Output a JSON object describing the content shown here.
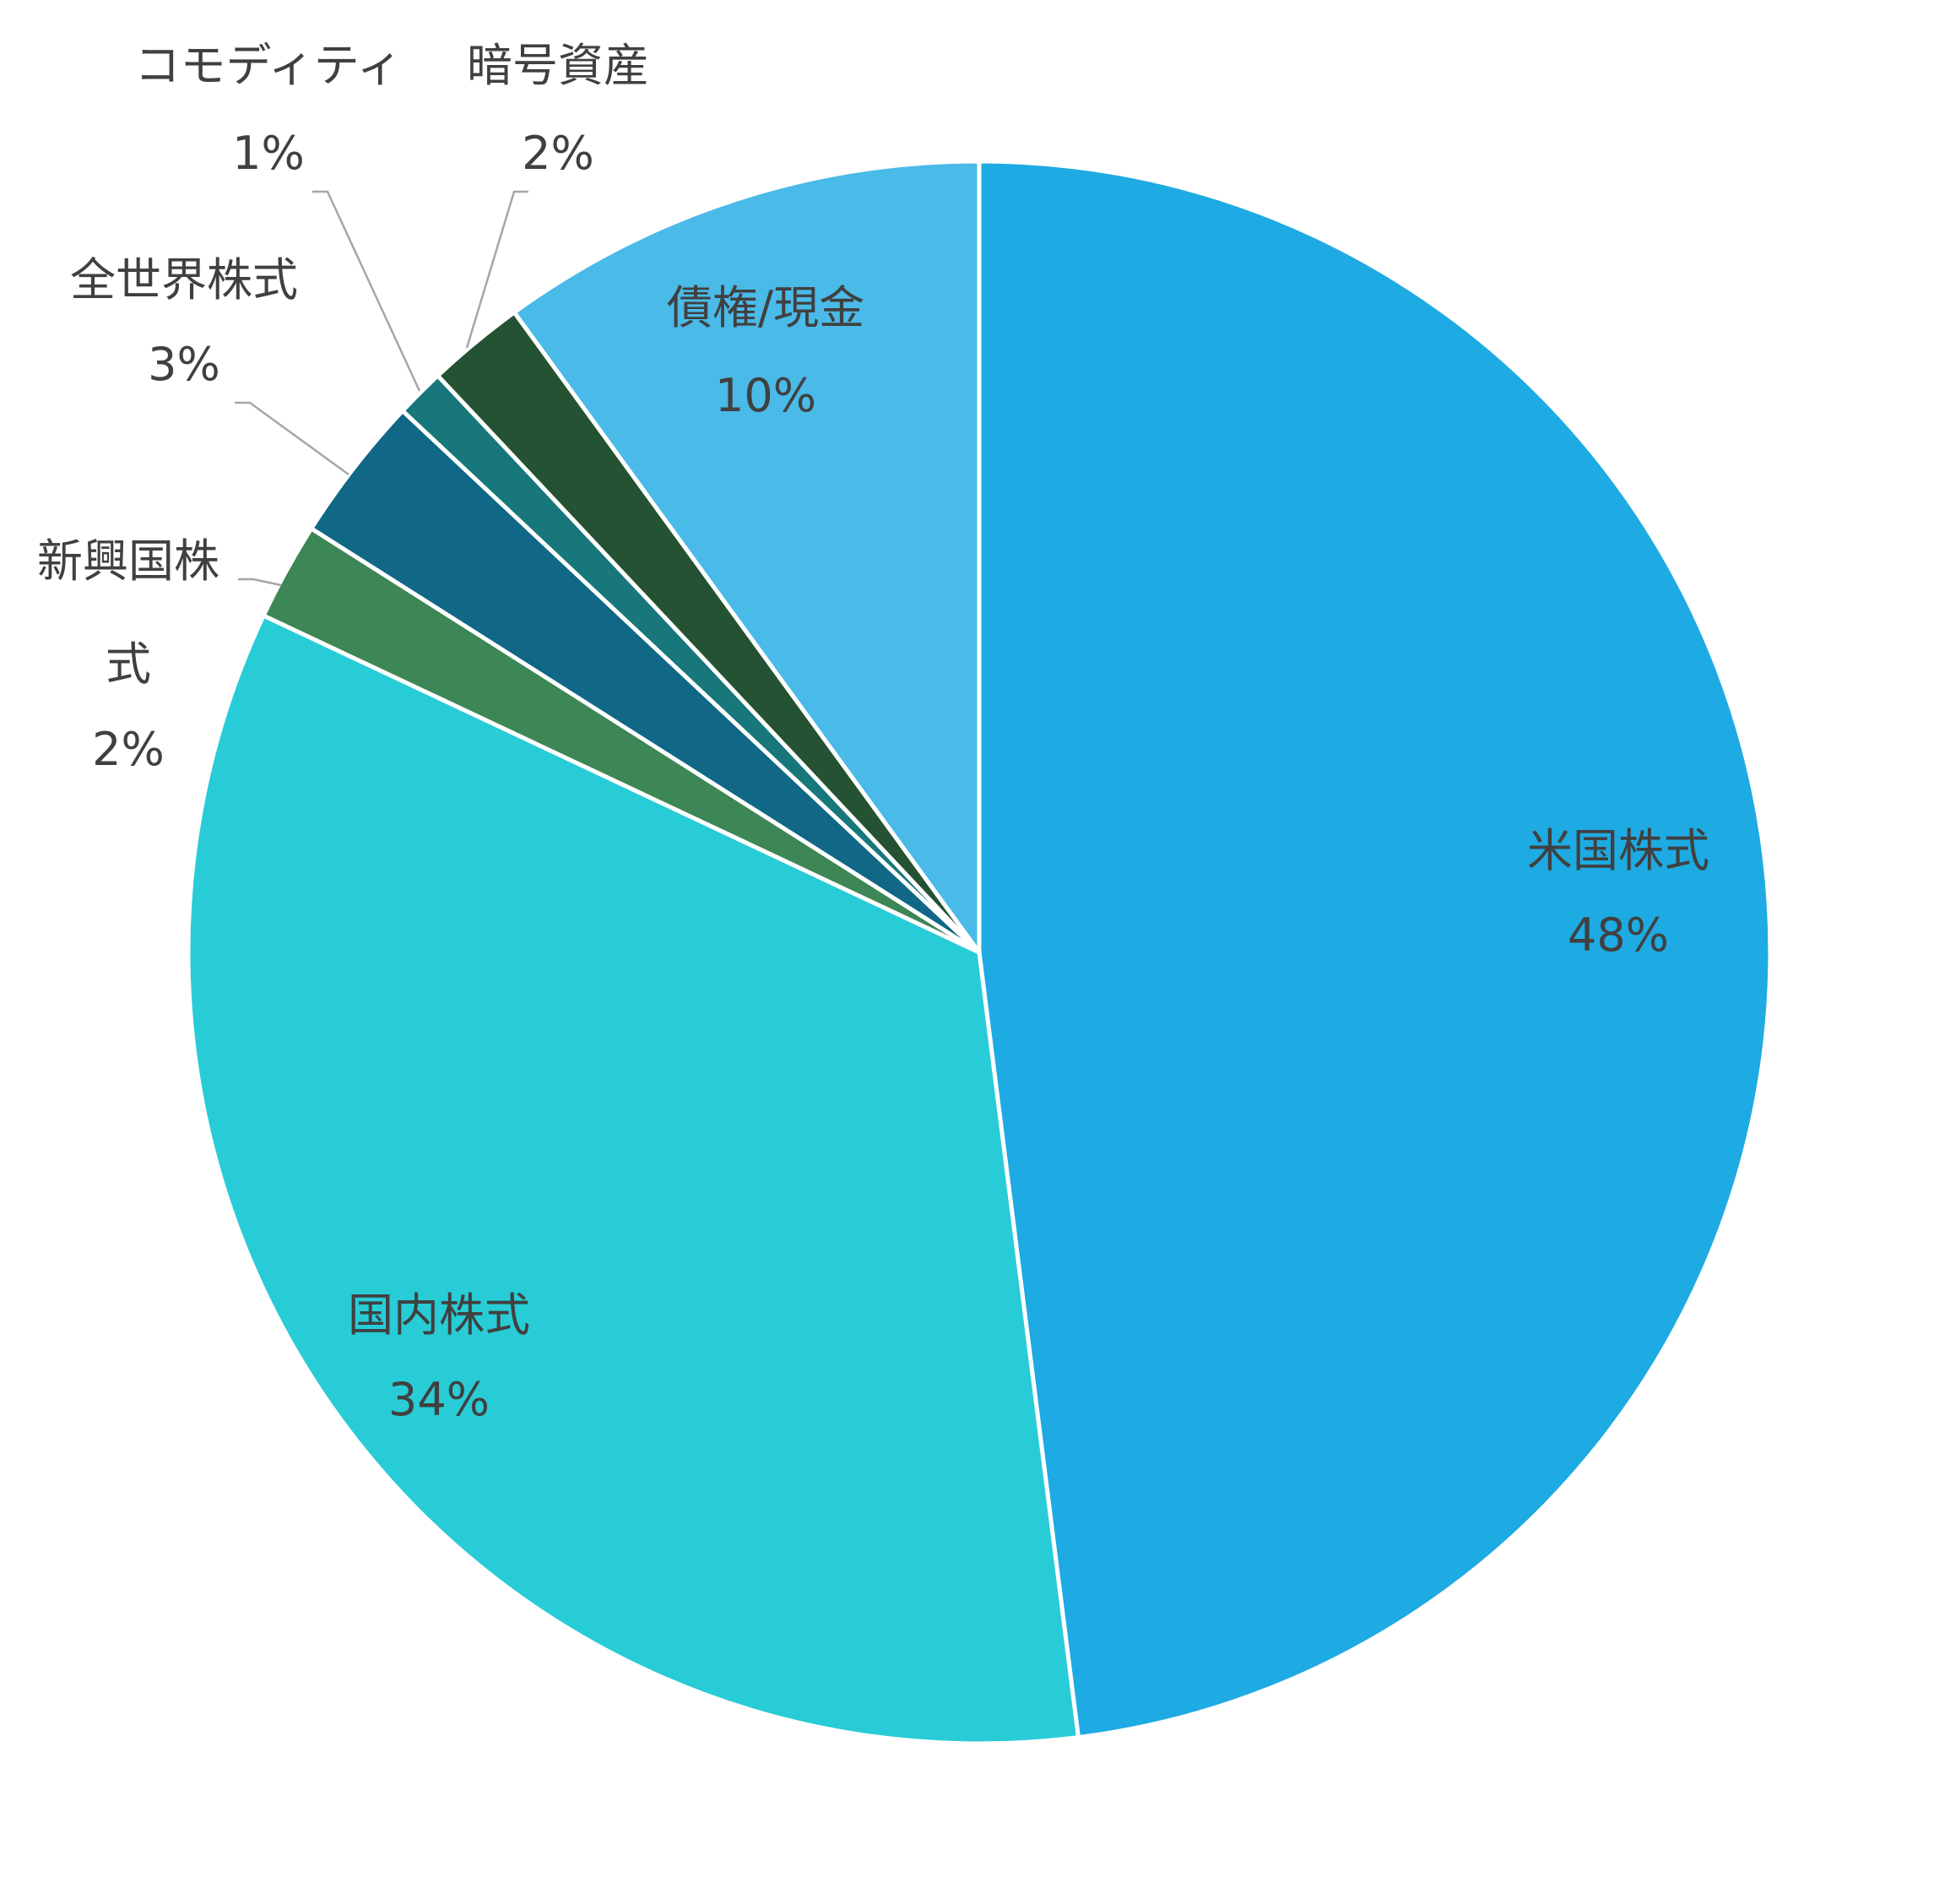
{
  "chart_data": {
    "type": "pie",
    "title": "",
    "slices": [
      {
        "category": "米国株式",
        "value": 48,
        "value_label": "48%",
        "color": "#1eaae2"
      },
      {
        "category": "国内株式",
        "value": 34,
        "value_label": "34%",
        "color": "#28ccd6"
      },
      {
        "category": "新興国株式",
        "value": 2,
        "value_label": "2%",
        "color": "#3d8655"
      },
      {
        "category": "全世界株式",
        "value": 3,
        "value_label": "3%",
        "color": "#106786"
      },
      {
        "category": "コモディティ",
        "value": 1,
        "value_label": "1%",
        "color": "#17777b"
      },
      {
        "category": "暗号資産",
        "value": 2,
        "value_label": "2%",
        "color": "#255232"
      },
      {
        "category": "債権/現金",
        "value": 10,
        "value_label": "10%",
        "color": "#4abae8"
      }
    ]
  }
}
